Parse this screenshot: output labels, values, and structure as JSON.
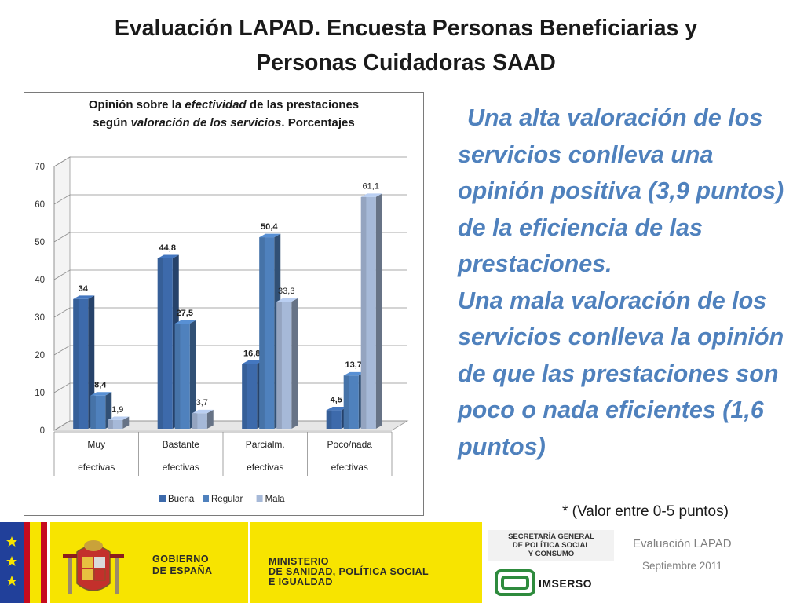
{
  "slide": {
    "title_line1": "Evaluación LAPAD.  Encuesta Personas Beneficiarias y",
    "title_line2": "Personas  Cuidadoras SAAD"
  },
  "chart_data": {
    "type": "bar",
    "title_parts": [
      "Opinión sobre la ",
      "efectividad",
      " de las prestaciones",
      "según  ",
      "valoración de los servicios",
      ". Porcentajes"
    ],
    "categories_line1": [
      "Muy",
      "Bastante",
      "Parcialm.",
      "Poco/nada"
    ],
    "categories_line2": [
      "efectivas",
      "efectivas",
      "efectivas",
      "efectivas"
    ],
    "series": [
      {
        "name": "Buena",
        "values": [
          34,
          44.8,
          16.8,
          4.5
        ],
        "labels": [
          "34",
          "44,8",
          "16,8",
          "4,5"
        ],
        "color": "#3d6aab",
        "bold": true
      },
      {
        "name": "Regular",
        "values": [
          8.4,
          27.5,
          50.4,
          13.7
        ],
        "labels": [
          "8,4",
          "27,5",
          "50,4",
          "13,7"
        ],
        "color": "#4f81bd",
        "bold": true
      },
      {
        "name": "Mala",
        "values": [
          1.9,
          3.7,
          33.3,
          61.1
        ],
        "labels": [
          "1,9",
          "3,7",
          "33,3",
          "61,1"
        ],
        "color": "#a6b9d8",
        "bold": false
      }
    ],
    "yticks": [
      "0",
      "10",
      "20",
      "30",
      "40",
      "50",
      "60",
      "70"
    ],
    "ylim": [
      0,
      70
    ],
    "grid": true,
    "legend_position": "bottom"
  },
  "side_text": {
    "para1": "Una alta valoración de los servicios conlleva una opinión positiva (3,9 puntos) de la eficiencia de las prestaciones.",
    "para2": "Una mala valoración de los servicios conlleva la opinión de que las prestaciones son poco o nada eficientes (1,6 puntos)"
  },
  "footnote": "* (Valor entre 0-5 puntos)",
  "footer": {
    "gobierno": [
      "GOBIERNO",
      "DE ESPAÑA"
    ],
    "ministerio": [
      "MINISTERIO",
      "DE SANIDAD, POLÍTICA SOCIAL",
      "E IGUALDAD"
    ],
    "secretaria": [
      "SECRETARÍA GENERAL",
      "DE POLÍTICA SOCIAL",
      "Y CONSUMO"
    ],
    "imserso": "IMSERSO",
    "eval_label": "Evaluación LAPAD",
    "date_label": "Septiembre 2011"
  },
  "colors": {
    "accent_text": "#4f81bd",
    "footer_yellow": "#f7e400",
    "eu_blue": "#21409a",
    "spain_red": "#c60b1e"
  }
}
